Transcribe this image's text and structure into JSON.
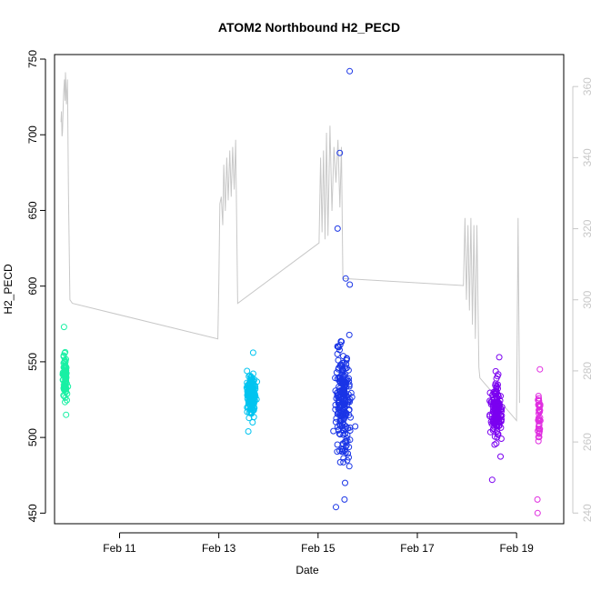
{
  "chart_data": {
    "type": "scatter",
    "title": "ATOM2 Northbound H2_PECD",
    "xlabel": "Date",
    "ylabel": "H2_PECD",
    "x_unit": "days since Feb 10 00:00",
    "xlim": [
      9.69,
      19.95
    ],
    "ylim": [
      443,
      753
    ],
    "x_ticks": [
      {
        "value": 11,
        "label": "Feb 11"
      },
      {
        "value": 13,
        "label": "Feb 13"
      },
      {
        "value": 15,
        "label": "Feb 15"
      },
      {
        "value": 17,
        "label": "Feb 17"
      },
      {
        "value": 19,
        "label": "Feb 19"
      }
    ],
    "y_ticks": [
      450,
      500,
      550,
      600,
      650,
      700,
      750
    ],
    "y2_ticks": [
      240,
      260,
      280,
      300,
      320,
      340,
      360
    ],
    "y2lim": [
      237,
      369
    ],
    "y2_color": "#c8c8c8",
    "clusters": [
      {
        "color": "#19f0a4",
        "x_center": 9.9,
        "x_spread": 0.09,
        "y_min": 515,
        "y_max": 573,
        "mean": 540,
        "n": 90,
        "extremes": [
          573,
          515
        ]
      },
      {
        "color": "#00c4f0",
        "x_center": 13.65,
        "x_spread": 0.2,
        "y_min": 504,
        "y_max": 556,
        "mean": 528,
        "n": 170,
        "extremes": [
          556,
          504
        ]
      },
      {
        "color": "#1a35e6",
        "x_center": 15.5,
        "x_spread": 0.3,
        "y_min": 454,
        "y_max": 742,
        "mean": 525,
        "n": 230,
        "extremes": [
          742,
          688,
          638,
          605,
          601,
          459,
          454,
          470
        ]
      },
      {
        "color": "#7b00f0",
        "x_center": 18.6,
        "x_spread": 0.22,
        "y_min": 472,
        "y_max": 553,
        "mean": 517,
        "n": 160,
        "extremes": [
          553,
          472
        ]
      },
      {
        "color": "#e02ee0",
        "x_center": 19.45,
        "x_spread": 0.06,
        "y_min": 450,
        "y_max": 545,
        "mean": 515,
        "n": 40,
        "extremes": [
          545,
          459,
          450
        ]
      }
    ],
    "secondary_line": [
      [
        9.82,
        350
      ],
      [
        9.83,
        353
      ],
      [
        9.84,
        346
      ],
      [
        9.85,
        347
      ],
      [
        9.87,
        357
      ],
      [
        9.88,
        360
      ],
      [
        9.89,
        362
      ],
      [
        9.9,
        356
      ],
      [
        9.91,
        364
      ],
      [
        9.93,
        355
      ],
      [
        9.95,
        362
      ],
      [
        9.97,
        330
      ],
      [
        10.0,
        300
      ],
      [
        10.05,
        299
      ],
      [
        12.98,
        289
      ],
      [
        13.0,
        305
      ],
      [
        13.02,
        327
      ],
      [
        13.05,
        329
      ],
      [
        13.08,
        321
      ],
      [
        13.1,
        338
      ],
      [
        13.13,
        325
      ],
      [
        13.16,
        340
      ],
      [
        13.19,
        328
      ],
      [
        13.22,
        342
      ],
      [
        13.25,
        329
      ],
      [
        13.28,
        343
      ],
      [
        13.31,
        331
      ],
      [
        13.34,
        345
      ],
      [
        13.38,
        299
      ],
      [
        15.02,
        316
      ],
      [
        15.05,
        340
      ],
      [
        15.08,
        319
      ],
      [
        15.11,
        342
      ],
      [
        15.14,
        317
      ],
      [
        15.17,
        347
      ],
      [
        15.2,
        318
      ],
      [
        15.24,
        349
      ],
      [
        15.28,
        325
      ],
      [
        15.32,
        343
      ],
      [
        15.36,
        333
      ],
      [
        15.4,
        345
      ],
      [
        15.44,
        326
      ],
      [
        15.47,
        343
      ],
      [
        15.5,
        306
      ],
      [
        17.93,
        304
      ],
      [
        17.96,
        323
      ],
      [
        17.99,
        300
      ],
      [
        18.02,
        321
      ],
      [
        18.05,
        297
      ],
      [
        18.08,
        323
      ],
      [
        18.11,
        293
      ],
      [
        18.14,
        321
      ],
      [
        18.17,
        289
      ],
      [
        18.2,
        321
      ],
      [
        18.24,
        281
      ],
      [
        18.26,
        278
      ],
      [
        19.0,
        266
      ],
      [
        19.03,
        323
      ],
      [
        19.06,
        271
      ]
    ]
  }
}
